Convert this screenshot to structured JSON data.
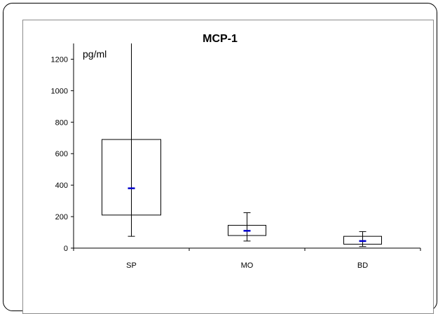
{
  "chart_data": {
    "type": "box",
    "title": "MCP-1",
    "unit_label": "pg/ml",
    "xlabel": "",
    "ylabel": "",
    "ylim": [
      0,
      1300
    ],
    "yticks": [
      0,
      200,
      400,
      600,
      800,
      1000,
      1200
    ],
    "categories": [
      "SP",
      "MO",
      "BD"
    ],
    "boxes": [
      {
        "category": "SP",
        "whisker_low": 75,
        "q1": 210,
        "median": 380,
        "q3": 690,
        "whisker_high": 1300
      },
      {
        "category": "MO",
        "whisker_low": 45,
        "q1": 80,
        "median": 110,
        "q3": 145,
        "whisker_high": 225
      },
      {
        "category": "BD",
        "whisker_low": 10,
        "q1": 25,
        "median": 45,
        "q3": 75,
        "whisker_high": 105
      }
    ],
    "grid": false,
    "legend": "none",
    "colors": {
      "median": "#0000cc",
      "box": "#000000",
      "frame": "#000000"
    }
  }
}
